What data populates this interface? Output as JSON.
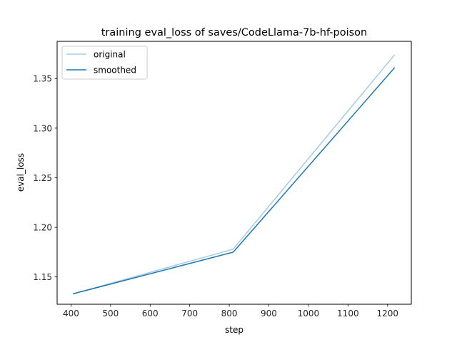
{
  "chart_data": {
    "type": "line",
    "title": "training eval_loss of saves/CodeLlama-7b-hf-poison",
    "xlabel": "step",
    "ylabel": "eval_loss",
    "xlim": [
      365,
      1260
    ],
    "ylim": [
      1.1225,
      1.3875
    ],
    "xticks": [
      400,
      500,
      600,
      700,
      800,
      900,
      1000,
      1100,
      1200
    ],
    "xtick_labels": [
      "400",
      "500",
      "600",
      "700",
      "800",
      "900",
      "1000",
      "1100",
      "1200"
    ],
    "yticks": [
      1.15,
      1.2,
      1.25,
      1.3,
      1.35
    ],
    "ytick_labels": [
      "1.15",
      "1.20",
      "1.25",
      "1.30",
      "1.35"
    ],
    "grid": false,
    "legend_position": "upper left",
    "series": [
      {
        "name": "original",
        "color": "#a6cbe3",
        "x": [
          405,
          810,
          1218
        ],
        "values": [
          1.133,
          1.178,
          1.374
        ]
      },
      {
        "name": "smoothed",
        "color": "#1f77b4",
        "x": [
          405,
          810,
          1218
        ],
        "values": [
          1.133,
          1.175,
          1.361
        ]
      }
    ]
  }
}
